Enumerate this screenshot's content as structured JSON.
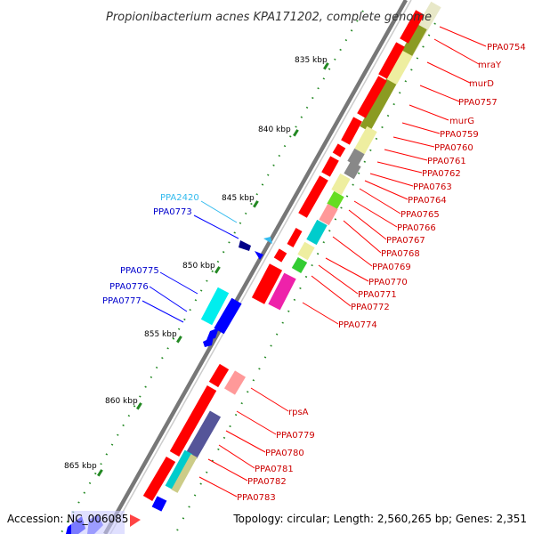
{
  "title": "Propionibacterium acnes KPA171202, complete genome",
  "footer": {
    "accession": "Accession: NC_006085",
    "topology": "Topology: circular; Length: 2,560,265 bp; Genes: 2,351"
  },
  "colors": {
    "forward_gene": "#ff0000",
    "reverse_gene": "#0000ff",
    "label_right": "#cc0000",
    "label_left": "#0000cc",
    "label_highlight": "#33bbee",
    "backbone": "#888888",
    "tick": "#228822"
  },
  "kbp_ticks": [
    "835 kbp",
    "840 kbp",
    "845 kbp",
    "850 kbp",
    "855 kbp",
    "860 kbp",
    "865 kbp"
  ],
  "right_labels": [
    "PPA0754",
    "mraY",
    "murD",
    "PPA0757",
    "murG",
    "PPA0759",
    "PPA0760",
    "PPA0761",
    "PPA0762",
    "PPA0763",
    "PPA0764",
    "PPA0765",
    "PPA0766",
    "PPA0767",
    "PPA0768",
    "PPA0769",
    "PPA0770",
    "PPA0771",
    "PPA0772",
    "PPA0774",
    "rpsA",
    "PPA0779",
    "PPA0780",
    "PPA0781",
    "PPA0782",
    "PPA0783"
  ],
  "left_labels": [
    "PPA2420",
    "PPA0773",
    "PPA0775",
    "PPA0776",
    "PPA0777"
  ]
}
